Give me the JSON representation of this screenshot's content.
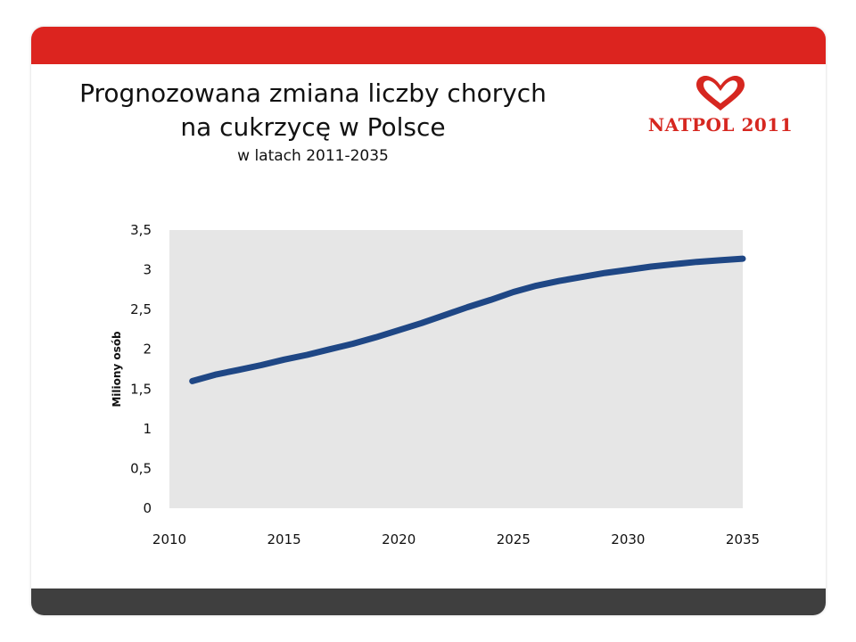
{
  "header": {
    "title_line1": "Prognozowana zmiana liczby chorych",
    "title_line2": "na cukrzycę w Polsce",
    "subtitle": "w latach 2011-2035"
  },
  "logo": {
    "text": "NATPOL 2011",
    "icon": "heart-logo-icon",
    "color": "#d62720"
  },
  "colors": {
    "topbar": "#dc241f",
    "bottombar": "#3f3f3f",
    "plot_bg": "#e6e6e6",
    "line": "#1f4785"
  },
  "chart_data": {
    "type": "line",
    "title": "",
    "xlabel": "",
    "ylabel": "Miliony osób",
    "xlim": [
      2010,
      2035
    ],
    "ylim": [
      0,
      3.5
    ],
    "x_ticks": [
      2010,
      2015,
      2020,
      2025,
      2030,
      2035
    ],
    "x_tick_labels": [
      "2010",
      "2015",
      "2020",
      "2025",
      "2030",
      "2035"
    ],
    "y_ticks": [
      0,
      0.5,
      1,
      1.5,
      2,
      2.5,
      3,
      3.5
    ],
    "y_tick_labels": [
      "0",
      "0,5",
      "1",
      "1,5",
      "2",
      "2,5",
      "3",
      "3,5"
    ],
    "grid": false,
    "legend": "none",
    "series": [
      {
        "x": [
          2011,
          2012,
          2013,
          2014,
          2015,
          2016,
          2017,
          2018,
          2019,
          2020,
          2021,
          2022,
          2023,
          2024,
          2025,
          2026,
          2027,
          2028,
          2029,
          2030,
          2031,
          2032,
          2033,
          2034,
          2035
        ],
        "values": [
          1.6,
          1.68,
          1.74,
          1.8,
          1.87,
          1.93,
          2.0,
          2.07,
          2.15,
          2.24,
          2.33,
          2.43,
          2.53,
          2.62,
          2.72,
          2.8,
          2.86,
          2.91,
          2.96,
          3.0,
          3.04,
          3.07,
          3.1,
          3.12,
          3.14
        ]
      }
    ]
  }
}
